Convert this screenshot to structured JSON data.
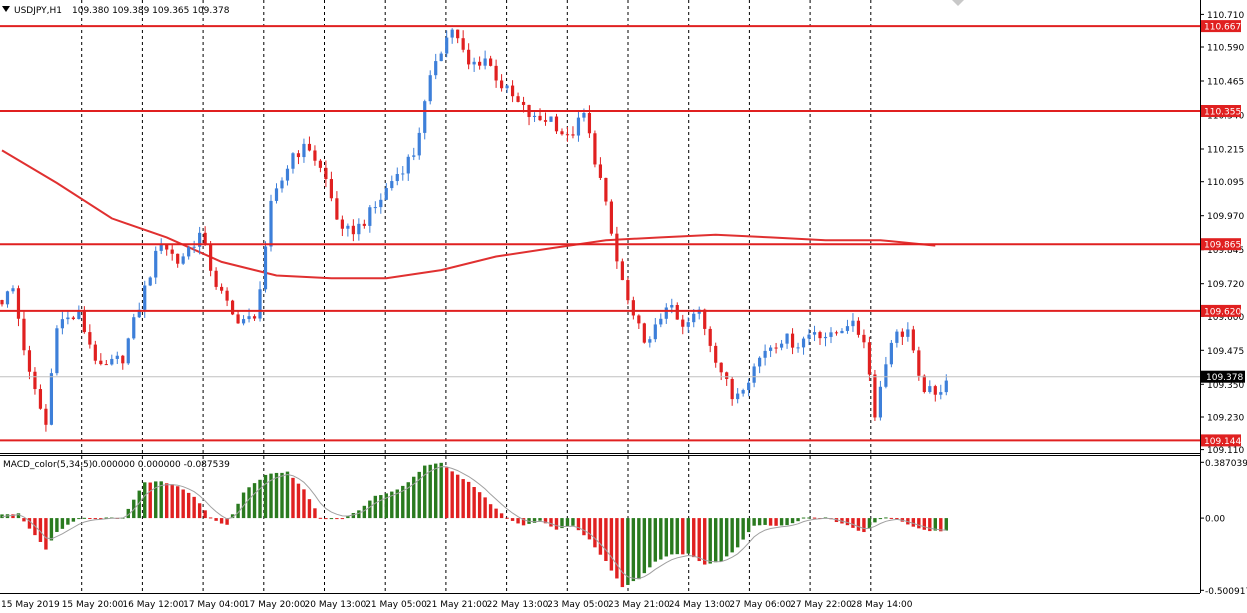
{
  "header": {
    "symbol": "USDJPY,H1",
    "ohlc": "109.380 109.389 109.365 109.378"
  },
  "macd_header": {
    "title": "MACD_color(5,34,5)",
    "values": "0.000000 0.000000 -0.087539"
  },
  "colors": {
    "bull": "#3d7fd9",
    "bear": "#e02020",
    "level": "#e02020",
    "ma": "#e03030",
    "macd_pos": "#2a7a1f",
    "macd_neg": "#e02020",
    "signal": "#a0a0a0",
    "grid": "#000000",
    "current_tag": "#000000"
  },
  "chart_data": [
    {
      "type": "candlestick",
      "name": "price",
      "ylim": [
        109.11,
        110.71
      ],
      "y_ticks": [
        "110.710",
        "110.590",
        "110.465",
        "110.340",
        "110.215",
        "110.095",
        "109.970",
        "109.845",
        "109.720",
        "109.600",
        "109.475",
        "109.350",
        "109.230",
        "109.110"
      ],
      "x_labels": [
        "15 May 2019",
        "15 May 20:00",
        "16 May 12:00",
        "17 May 04:00",
        "17 May 20:00",
        "20 May 13:00",
        "21 May 05:00",
        "21 May 21:00",
        "22 May 13:00",
        "23 May 05:00",
        "23 May 21:00",
        "24 May 13:00",
        "27 May 06:00",
        "27 May 22:00",
        "28 May 14:00"
      ],
      "grid": true,
      "current_price": "109.378",
      "levels": [
        "110.667",
        "110.355",
        "109.865",
        "109.620",
        "109.144"
      ],
      "close_path": [
        [
          0,
          109.66
        ],
        [
          2,
          109.7
        ],
        [
          5,
          109.38
        ],
        [
          8,
          109.2
        ],
        [
          10,
          109.58
        ],
        [
          14,
          109.6
        ],
        [
          18,
          109.4
        ],
        [
          22,
          109.45
        ],
        [
          26,
          109.7
        ],
        [
          29,
          109.88
        ],
        [
          32,
          109.8
        ],
        [
          36,
          109.9
        ],
        [
          39,
          109.72
        ],
        [
          42,
          109.6
        ],
        [
          46,
          109.58
        ],
        [
          49,
          110.0
        ],
        [
          53,
          110.2
        ],
        [
          56,
          110.22
        ],
        [
          59,
          110.1
        ],
        [
          62,
          109.9
        ],
        [
          65,
          109.93
        ],
        [
          68,
          110.0
        ],
        [
          71,
          110.1
        ],
        [
          75,
          110.2
        ],
        [
          79,
          110.55
        ],
        [
          82,
          110.66
        ],
        [
          85,
          110.52
        ],
        [
          88,
          110.55
        ],
        [
          91,
          110.45
        ],
        [
          94,
          110.38
        ],
        [
          97,
          110.32
        ],
        [
          100,
          110.33
        ],
        [
          103,
          110.25
        ],
        [
          106,
          110.34
        ],
        [
          109,
          110.1
        ],
        [
          112,
          109.8
        ],
        [
          115,
          109.58
        ],
        [
          118,
          109.5
        ],
        [
          121,
          109.65
        ],
        [
          124,
          109.55
        ],
        [
          127,
          109.62
        ],
        [
          130,
          109.45
        ],
        [
          133,
          109.3
        ],
        [
          136,
          109.38
        ],
        [
          139,
          109.48
        ],
        [
          142,
          109.52
        ],
        [
          145,
          109.5
        ],
        [
          148,
          109.55
        ],
        [
          151,
          109.52
        ],
        [
          154,
          109.58
        ],
        [
          157,
          109.52
        ],
        [
          159,
          109.25
        ],
        [
          162,
          109.52
        ],
        [
          165,
          109.55
        ],
        [
          167,
          109.36
        ],
        [
          170,
          109.3
        ],
        [
          172,
          109.38
        ]
      ],
      "ma_path": [
        [
          0,
          110.21
        ],
        [
          10,
          110.09
        ],
        [
          20,
          109.96
        ],
        [
          30,
          109.89
        ],
        [
          40,
          109.8
        ],
        [
          50,
          109.75
        ],
        [
          60,
          109.74
        ],
        [
          70,
          109.74
        ],
        [
          80,
          109.77
        ],
        [
          90,
          109.82
        ],
        [
          100,
          109.85
        ],
        [
          110,
          109.88
        ],
        [
          120,
          109.89
        ],
        [
          130,
          109.9
        ],
        [
          140,
          109.89
        ],
        [
          150,
          109.88
        ],
        [
          160,
          109.88
        ],
        [
          170,
          109.86
        ]
      ]
    },
    {
      "type": "histogram",
      "name": "macd",
      "ylim": [
        -0.500917,
        0.387039
      ],
      "y_ticks": [
        "0.387039",
        "0.00",
        "-0.500917"
      ],
      "path": [
        [
          0,
          0.03
        ],
        [
          3,
          0.03
        ],
        [
          6,
          -0.12
        ],
        [
          8,
          -0.22
        ],
        [
          10,
          -0.1
        ],
        [
          14,
          0.0
        ],
        [
          18,
          0.0
        ],
        [
          22,
          0.0
        ],
        [
          26,
          0.25
        ],
        [
          29,
          0.25
        ],
        [
          32,
          0.22
        ],
        [
          35,
          0.15
        ],
        [
          38,
          0.0
        ],
        [
          41,
          -0.05
        ],
        [
          44,
          0.18
        ],
        [
          48,
          0.3
        ],
        [
          52,
          0.32
        ],
        [
          55,
          0.2
        ],
        [
          58,
          0.0
        ],
        [
          62,
          0.0
        ],
        [
          65,
          0.05
        ],
        [
          68,
          0.15
        ],
        [
          71,
          0.18
        ],
        [
          74,
          0.25
        ],
        [
          77,
          0.36
        ],
        [
          80,
          0.38
        ],
        [
          83,
          0.3
        ],
        [
          86,
          0.22
        ],
        [
          89,
          0.1
        ],
        [
          92,
          0.0
        ],
        [
          95,
          -0.05
        ],
        [
          98,
          -0.02
        ],
        [
          101,
          -0.08
        ],
        [
          104,
          -0.05
        ],
        [
          107,
          -0.15
        ],
        [
          110,
          -0.3
        ],
        [
          113,
          -0.48
        ],
        [
          116,
          -0.42
        ],
        [
          119,
          -0.3
        ],
        [
          122,
          -0.25
        ],
        [
          125,
          -0.25
        ],
        [
          128,
          -0.32
        ],
        [
          131,
          -0.3
        ],
        [
          134,
          -0.2
        ],
        [
          137,
          -0.05
        ],
        [
          140,
          -0.05
        ],
        [
          143,
          -0.05
        ],
        [
          146,
          0.0
        ],
        [
          150,
          0.0
        ],
        [
          154,
          -0.05
        ],
        [
          157,
          -0.1
        ],
        [
          160,
          0.0
        ],
        [
          163,
          0.0
        ],
        [
          166,
          -0.06
        ],
        [
          169,
          -0.09
        ]
      ]
    }
  ]
}
